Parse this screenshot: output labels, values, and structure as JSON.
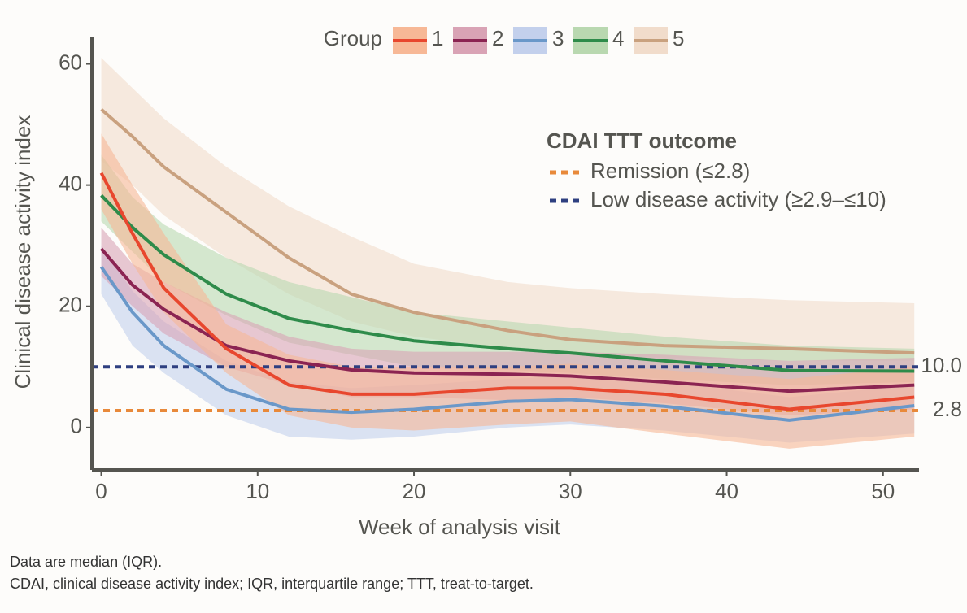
{
  "chart_data": {
    "type": "line",
    "x_label": "Week of analysis visit",
    "y_label": "Clinical disease activity index",
    "xlim": [
      -0.6,
      52.3
    ],
    "ylim": [
      -7,
      64.5
    ],
    "xticks": [
      0,
      10,
      20,
      30,
      40,
      50
    ],
    "yticks": [
      0,
      20,
      40,
      60
    ],
    "legend_title": "Group",
    "x": [
      0,
      2,
      4,
      8,
      12,
      16,
      20,
      26,
      30,
      36,
      44,
      52
    ],
    "series": [
      {
        "name": "1",
        "color": "#e8472e",
        "band_color": "#f7b896",
        "values": [
          42,
          32,
          23,
          13,
          7,
          5.5,
          5.5,
          6.5,
          6.5,
          5.5,
          3,
          5
        ],
        "high": [
          48.5,
          40,
          32,
          17,
          12,
          10,
          10,
          10,
          10.5,
          9.5,
          8,
          10
        ],
        "low": [
          36,
          27,
          19,
          9,
          2,
          0,
          -0.5,
          0.5,
          1,
          -1,
          -3.5,
          -1.5
        ]
      },
      {
        "name": "2",
        "color": "#8b2452",
        "band_color": "#d9a3b5",
        "values": [
          29.5,
          23.5,
          19.5,
          13.5,
          11,
          9.5,
          9,
          8.8,
          8.5,
          7.5,
          6,
          7
        ],
        "high": [
          33,
          27,
          24,
          19,
          15,
          13,
          12.5,
          12.5,
          12.5,
          12,
          11,
          11.5
        ],
        "low": [
          25,
          20,
          15.5,
          10,
          7,
          5,
          5,
          4.5,
          5,
          4,
          2,
          3
        ]
      },
      {
        "name": "3",
        "color": "#6a98c9",
        "band_color": "#c3d0ec",
        "values": [
          26.5,
          19,
          13.5,
          6.3,
          3,
          2.5,
          3,
          4.3,
          4.6,
          3.5,
          1.2,
          3.6
        ],
        "high": [
          30,
          22.5,
          17.5,
          11,
          7.5,
          6.5,
          7,
          8,
          8.5,
          7.5,
          5,
          7
        ],
        "low": [
          22,
          13.5,
          9,
          2,
          -1.5,
          -2,
          -1.5,
          0,
          0.5,
          -0.5,
          -2.5,
          -1
        ]
      },
      {
        "name": "4",
        "color": "#2e8b4a",
        "band_color": "#b9d8b0",
        "values": [
          38.3,
          33,
          28.5,
          22,
          18,
          16,
          14.3,
          13,
          12.3,
          11,
          9.4,
          9.3
        ],
        "high": [
          45,
          38,
          33.5,
          28,
          24,
          21.5,
          19,
          17.5,
          16.5,
          15,
          13.5,
          13
        ],
        "low": [
          34,
          29,
          24,
          18.5,
          14,
          12,
          10,
          9.5,
          9,
          8,
          7,
          7.5
        ]
      },
      {
        "name": "5",
        "color": "#c9a17f",
        "band_color": "#f1dccb",
        "values": [
          52.5,
          48,
          43,
          35.5,
          28,
          22,
          19,
          16,
          14.5,
          13.5,
          13,
          12.3
        ],
        "high": [
          61,
          56,
          51,
          43,
          36.5,
          31.5,
          27,
          24,
          23,
          22,
          21,
          20.5
        ],
        "low": [
          44,
          40,
          35,
          28,
          22,
          17.5,
          15,
          13,
          12.5,
          11.5,
          11,
          11
        ]
      }
    ],
    "reference_title": "CDAI TTT outcome",
    "reference_lines": [
      {
        "name": "Remission (≤2.8)",
        "value": 2.8,
        "label": "2.8",
        "color": "#e8893a"
      },
      {
        "name": "Low disease activity (≥2.9–≤10)",
        "value": 10,
        "label": "10.0",
        "color": "#2e3f80"
      }
    ]
  },
  "footnotes": [
    "Data are median (IQR).",
    "CDAI, clinical disease activity index; IQR, interquartile range; TTT, treat-to-target."
  ]
}
